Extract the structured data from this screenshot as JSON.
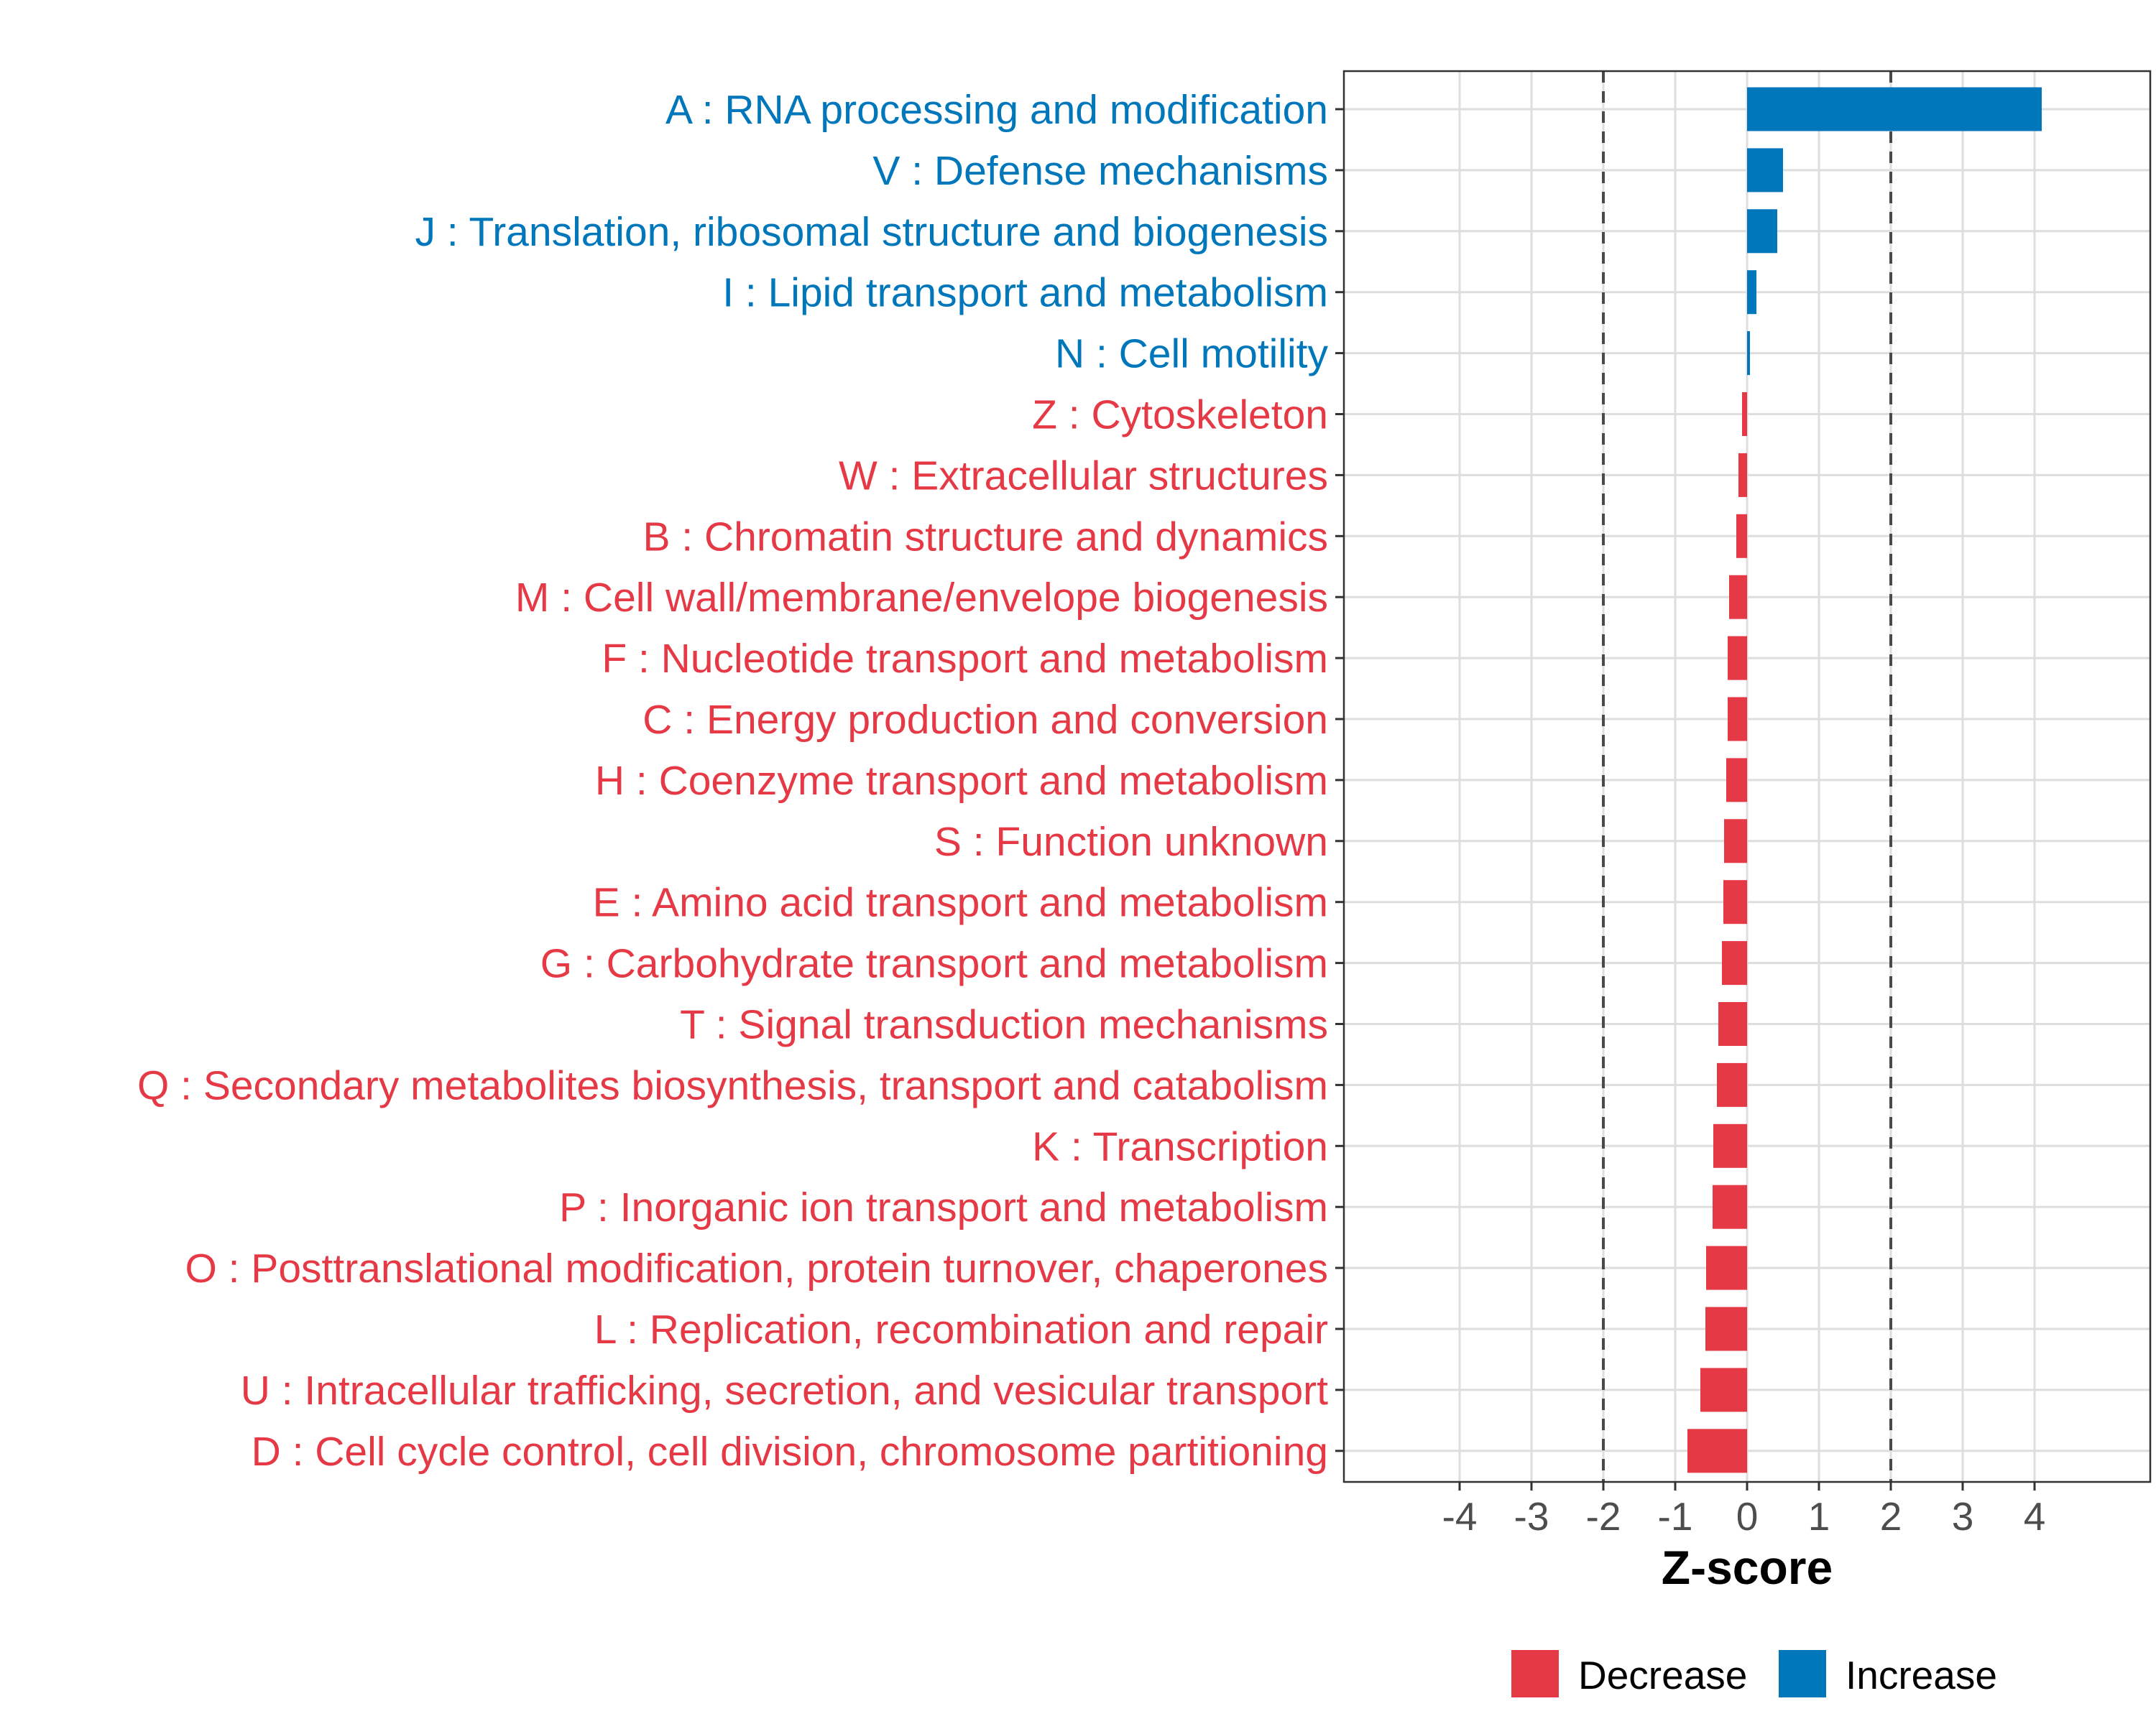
{
  "chart_data": {
    "type": "bar",
    "orientation": "horizontal",
    "title": "",
    "xlabel": "Z-score",
    "ylabel": "",
    "xlim": [
      -5.6,
      5.4
    ],
    "xticks": [
      -4,
      -3,
      -2,
      -1,
      0,
      1,
      2,
      3,
      4
    ],
    "xtick_labels": [
      "-4",
      "-3",
      "-2",
      "-1",
      "0",
      "1",
      "2",
      "3",
      "4"
    ],
    "reference_lines": [
      -2,
      2
    ],
    "grid": true,
    "colors": {
      "Decrease": "#e63946",
      "Increase": "#0077bb"
    },
    "legend": {
      "position": "bottom",
      "entries": [
        {
          "label": "Decrease",
          "color": "#e63946"
        },
        {
          "label": "Increase",
          "color": "#0077bb"
        }
      ]
    },
    "categories": [
      "A : RNA processing and modification",
      "V : Defense mechanisms",
      "J : Translation, ribosomal structure and biogenesis",
      "I : Lipid transport and metabolism",
      "N : Cell motility",
      "Z : Cytoskeleton",
      "W : Extracellular structures",
      "B : Chromatin structure and dynamics",
      "M : Cell wall/membrane/envelope biogenesis",
      "F : Nucleotide transport and metabolism",
      "C : Energy production and conversion",
      "H : Coenzyme transport and metabolism",
      "S : Function unknown",
      "E : Amino acid transport and metabolism",
      "G : Carbohydrate transport and metabolism",
      "T : Signal transduction mechanisms",
      "Q : Secondary metabolites biosynthesis, transport and catabolism",
      "K : Transcription",
      "P : Inorganic ion transport and metabolism",
      "O : Posttranslational modification, protein turnover, chaperones",
      "L : Replication, recombination and repair",
      "U : Intracellular trafficking, secretion, and vesicular transport",
      "D : Cell cycle control, cell division, chromosome partitioning"
    ],
    "values": [
      4.1,
      0.5,
      0.42,
      0.13,
      0.04,
      -0.07,
      -0.12,
      -0.15,
      -0.25,
      -0.27,
      -0.27,
      -0.29,
      -0.32,
      -0.33,
      -0.35,
      -0.4,
      -0.42,
      -0.47,
      -0.48,
      -0.57,
      -0.58,
      -0.65,
      -0.83
    ],
    "direction": [
      "Increase",
      "Increase",
      "Increase",
      "Increase",
      "Increase",
      "Decrease",
      "Decrease",
      "Decrease",
      "Decrease",
      "Decrease",
      "Decrease",
      "Decrease",
      "Decrease",
      "Decrease",
      "Decrease",
      "Decrease",
      "Decrease",
      "Decrease",
      "Decrease",
      "Decrease",
      "Decrease",
      "Decrease",
      "Decrease"
    ]
  }
}
